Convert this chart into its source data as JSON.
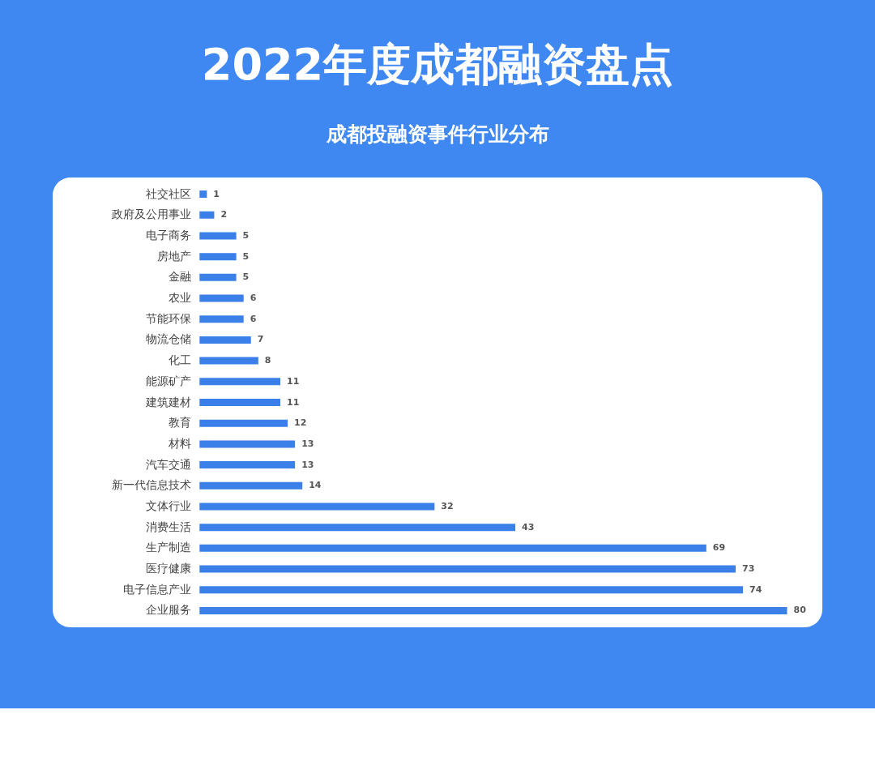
{
  "chart_data": {
    "type": "bar",
    "orientation": "horizontal",
    "title": "2022年度成都融资盘点",
    "subtitle": "成都投融资事件行业分布",
    "categories": [
      "社交社区",
      "政府及公用事业",
      "电子商务",
      "房地产",
      "金融",
      "农业",
      "节能环保",
      "物流仓储",
      "化工",
      "能源矿产",
      "建筑建材",
      "教育",
      "材料",
      "汽车交通",
      "新一代信息技术",
      "文体行业",
      "消费生活",
      "生产制造",
      "医疗健康",
      "电子信息产业",
      "企业服务"
    ],
    "values": [
      1,
      2,
      5,
      5,
      5,
      6,
      6,
      7,
      8,
      11,
      11,
      12,
      13,
      13,
      14,
      32,
      43,
      69,
      73,
      74,
      80
    ],
    "color": "#3a80e8",
    "data_labels": true
  }
}
